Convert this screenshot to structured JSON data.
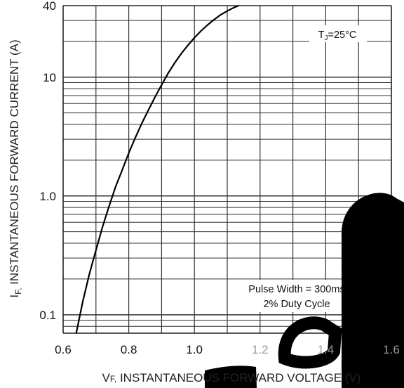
{
  "chart_data": {
    "type": "line",
    "yscale": "log",
    "xlim": [
      0.6,
      1.6
    ],
    "ylim": [
      0.07,
      40
    ],
    "x_ticks": [
      0.6,
      0.8,
      1.0,
      1.2,
      1.4,
      1.6
    ],
    "x_tick_labels": [
      "0.6",
      "0.8",
      "1.0",
      "1.2",
      "1.4",
      "1.6"
    ],
    "y_ticks": [
      0.1,
      1.0,
      10,
      40
    ],
    "y_tick_labels": [
      "0.1",
      "1.0",
      "10",
      "40"
    ],
    "grid": true,
    "xlabel": {
      "symbol": "V",
      "subscript": "F,",
      "text": " INSTANTANEOUS  FORWARD  VOLTAGE (V)"
    },
    "ylabel": {
      "symbol": "I",
      "subscript": "F,",
      "text": " INSTANTANEOUS FORWARD CURRENT (A)"
    },
    "annotations": {
      "junction_temp": {
        "symbol": "T",
        "subscript": "J",
        "text": "=25°C"
      },
      "pulse_width": "Pulse Width = 300ms",
      "duty_cycle": "2% Duty Cycle"
    },
    "series": [
      {
        "x": [
          0.64,
          0.66,
          0.68,
          0.7,
          0.72,
          0.74,
          0.76,
          0.78,
          0.8,
          0.82,
          0.84,
          0.86,
          0.88,
          0.9,
          0.92,
          0.94,
          0.96,
          0.98,
          1.0,
          1.02,
          1.04,
          1.06,
          1.08,
          1.1,
          1.12,
          1.135
        ],
        "y": [
          0.07,
          0.13,
          0.22,
          0.35,
          0.55,
          0.82,
          1.2,
          1.65,
          2.3,
          3.1,
          4.1,
          5.3,
          6.8,
          8.6,
          10.8,
          13.2,
          15.8,
          18.5,
          21.5,
          24.5,
          27.5,
          30.5,
          33.5,
          36.0,
          38.5,
          40.0
        ]
      }
    ]
  }
}
